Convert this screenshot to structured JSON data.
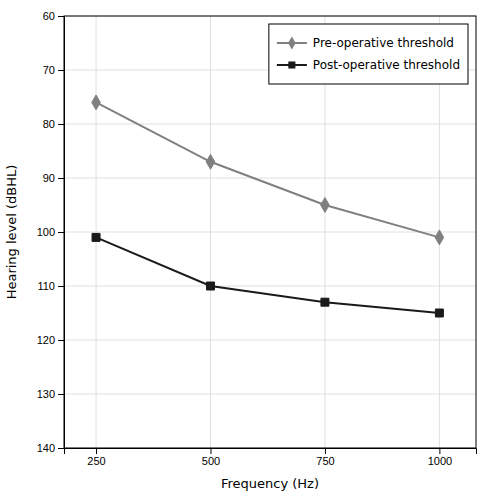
{
  "chart_data": {
    "type": "line",
    "xlabel": "Frequency (Hz)",
    "ylabel": "Hearing level (dBHL)",
    "x": [
      250,
      500,
      750,
      1000
    ],
    "series": [
      {
        "name": "Pre-operative threshold",
        "color": "#808080",
        "marker": "diamond",
        "values": [
          76,
          87,
          95,
          101
        ]
      },
      {
        "name": "Post-operative threshold",
        "color": "#1a1a1a",
        "marker": "square",
        "values": [
          101,
          110,
          113,
          115
        ]
      }
    ],
    "xlim": [
      180,
      1080
    ],
    "xticks": [
      250,
      500,
      750,
      1000
    ],
    "ylim": [
      140,
      60
    ],
    "yticks": [
      60,
      70,
      80,
      90,
      100,
      110,
      120,
      130,
      140
    ],
    "grid": true,
    "legend": "upper right"
  }
}
